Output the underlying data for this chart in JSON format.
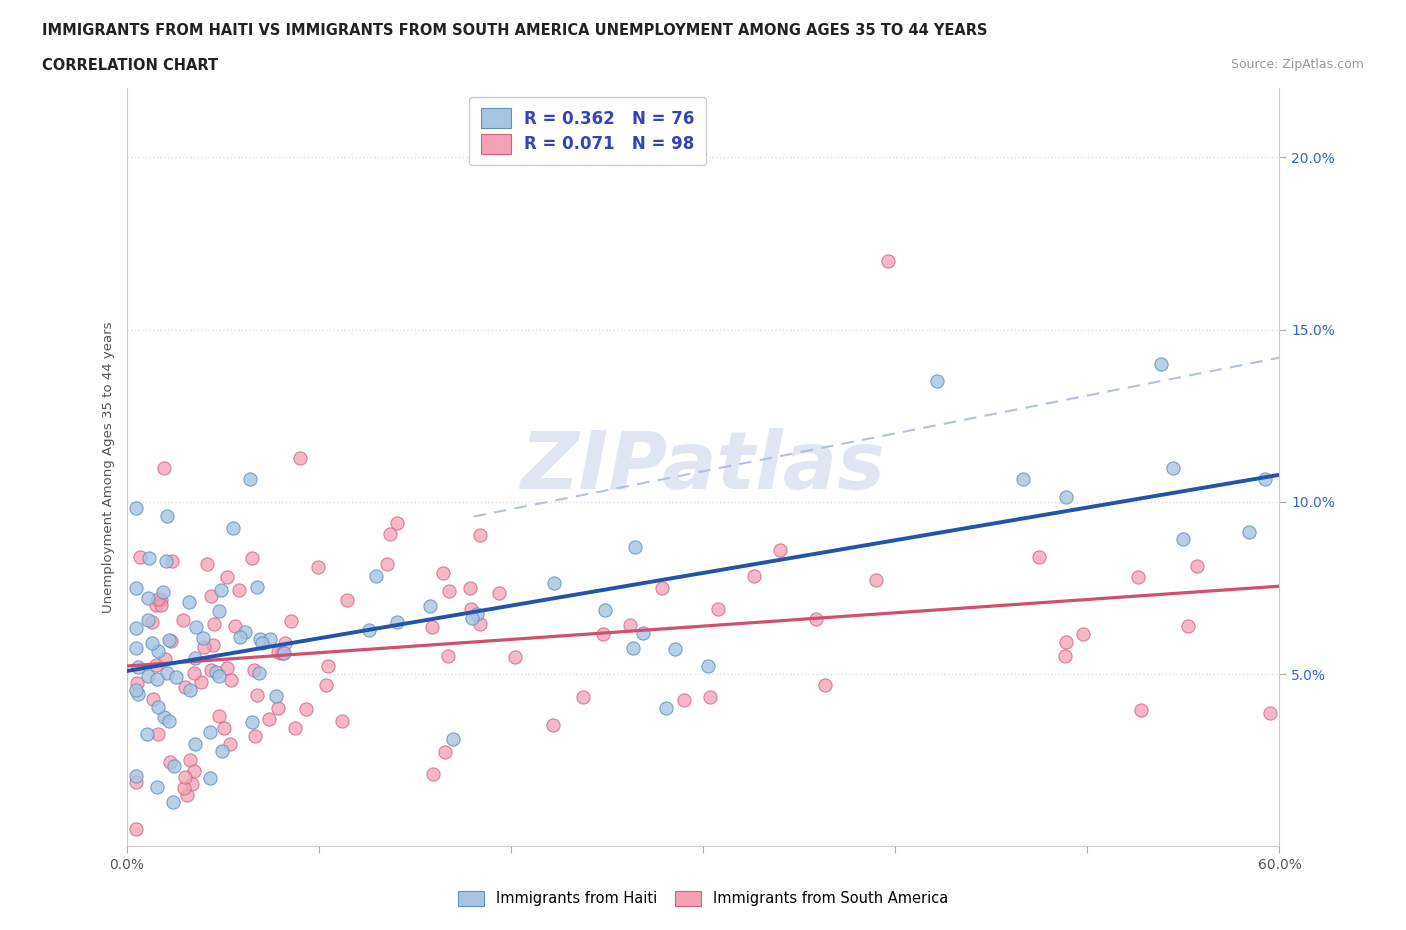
{
  "title_line1": "IMMIGRANTS FROM HAITI VS IMMIGRANTS FROM SOUTH AMERICA UNEMPLOYMENT AMONG AGES 35 TO 44 YEARS",
  "title_line2": "CORRELATION CHART",
  "source_text": "Source: ZipAtlas.com",
  "ylabel": "Unemployment Among Ages 35 to 44 years",
  "xlim": [
    0.0,
    0.6
  ],
  "ylim": [
    0.0,
    0.22
  ],
  "xtick_positions": [
    0.0,
    0.1,
    0.2,
    0.3,
    0.4,
    0.5,
    0.6
  ],
  "xticklabels": [
    "0.0%",
    "",
    "",
    "",
    "",
    "",
    "60.0%"
  ],
  "ytick_positions": [
    0.05,
    0.1,
    0.15,
    0.2
  ],
  "ytick_labels": [
    "5.0%",
    "10.0%",
    "15.0%",
    "20.0%"
  ],
  "haiti_color_fill": "#a8c4e0",
  "haiti_color_edge": "#6090c0",
  "south_america_color_fill": "#f4a0b5",
  "south_america_color_edge": "#d06080",
  "haiti_trend_color": "#2255aa",
  "south_america_trend_color": "#d05070",
  "conf_band_color": "#aabbdd",
  "haiti_R": 0.362,
  "haiti_N": 76,
  "south_america_R": 0.071,
  "south_america_N": 98,
  "legend_label_haiti": "R = 0.362   N = 76",
  "legend_label_sa": "R = 0.071   N = 98",
  "legend_text_color": "#3344bb",
  "watermark_text": "ZIPatlas",
  "watermark_color": "#ccd8ea",
  "background_color": "#ffffff",
  "grid_color": "#dddddd",
  "ytick_color": "#3366cc",
  "xtick_color": "#555555"
}
